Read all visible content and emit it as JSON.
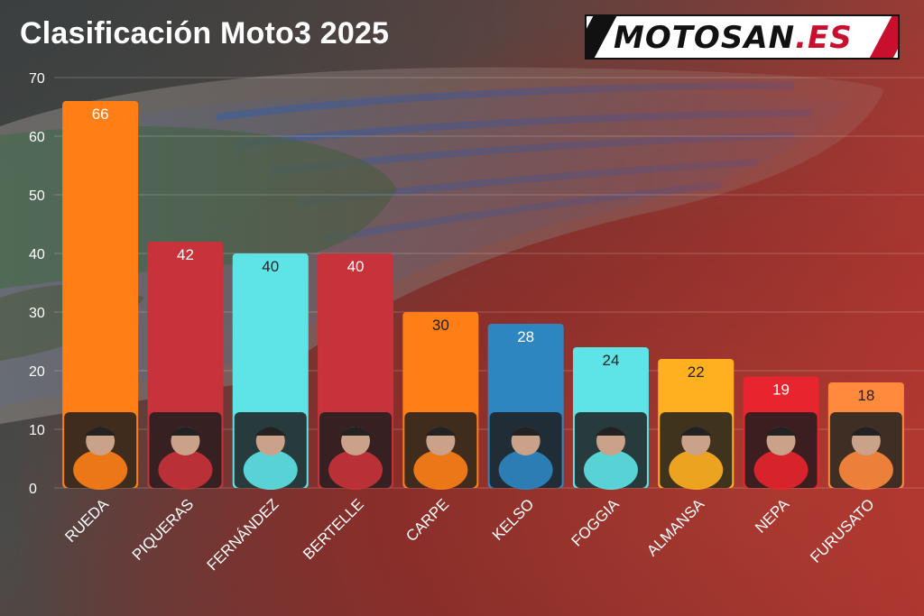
{
  "title": "Clasificación Moto3 2025",
  "logo": {
    "prefix": "MOTOSAN",
    "suffix": ".ES"
  },
  "chart_data": {
    "type": "bar",
    "title": "Clasificación Moto3 2025",
    "xlabel": "",
    "ylabel": "",
    "ylim": [
      0,
      70
    ],
    "yticks": [
      0,
      10,
      20,
      30,
      40,
      50,
      60,
      70
    ],
    "grid": true,
    "categories": [
      "RUEDA",
      "PIQUERAS",
      "FERNÁNDEZ",
      "BERTELLE",
      "CARPE",
      "KELSO",
      "FOGGIA",
      "ALMANSA",
      "NEPA",
      "FURUSATO"
    ],
    "values": [
      66,
      42,
      40,
      40,
      30,
      28,
      24,
      22,
      19,
      18
    ],
    "colors": [
      "#ff7f16",
      "#c8323a",
      "#5ee3e6",
      "#c8323a",
      "#ff7f16",
      "#2e86c1",
      "#5ee3e6",
      "#ffb020",
      "#e8242e",
      "#ff8a3d"
    ],
    "label_colors": [
      "#ffffff",
      "#ffffff",
      "#222222",
      "#ffffff",
      "#222222",
      "#ffffff",
      "#222222",
      "#222222",
      "#ffffff",
      "#222222"
    ]
  }
}
